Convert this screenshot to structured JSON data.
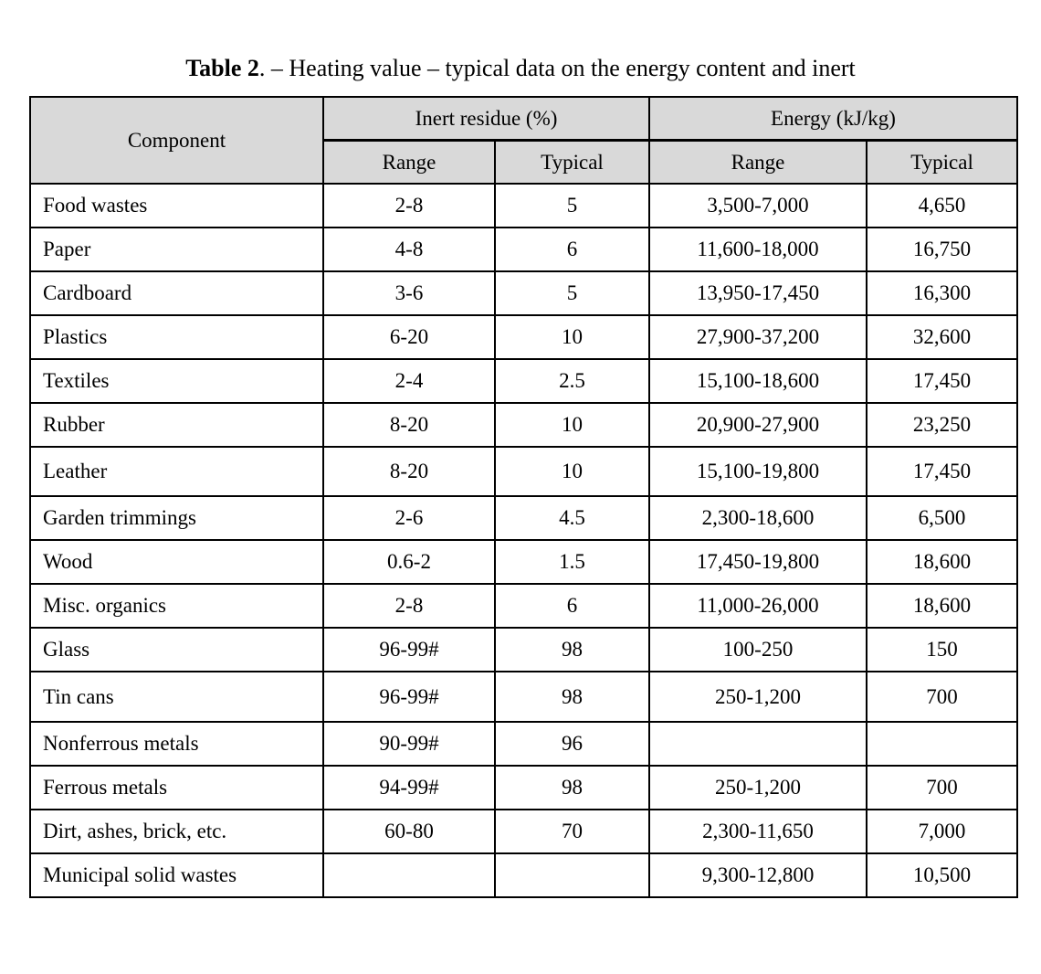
{
  "page": {
    "title_prefix": "Table 2",
    "title_rest": ". – Heating value – typical data on the energy content and inert"
  },
  "colors": {
    "header_bg": "#d9d9d9",
    "border": "#000000",
    "background": "#ffffff",
    "text": "#000000"
  },
  "table": {
    "header": {
      "component": "Component",
      "inert_group": "Inert residue (%)",
      "energy_group": "Energy (kJ/kg)",
      "sub_headers": {
        "inert_range": "Range",
        "inert_typical": "Typical",
        "energy_range": "Range",
        "energy_typical": "Typical"
      }
    },
    "rows": [
      {
        "component": "Food wastes",
        "inert_range": "2-8",
        "inert_typical": "5",
        "energy_range": "3,500-7,000",
        "energy_typical": "4,650"
      },
      {
        "component": "Paper",
        "inert_range": "4-8",
        "inert_typical": "6",
        "energy_range": "11,600-18,000",
        "energy_typical": "16,750"
      },
      {
        "component": "Cardboard",
        "inert_range": "3-6",
        "inert_typical": "5",
        "energy_range": "13,950-17,450",
        "energy_typical": "16,300"
      },
      {
        "component": "Plastics",
        "inert_range": "6-20",
        "inert_typical": "10",
        "energy_range": "27,900-37,200",
        "energy_typical": "32,600"
      },
      {
        "component": "Textiles",
        "inert_range": "2-4",
        "inert_typical": "2.5",
        "energy_range": "15,100-18,600",
        "energy_typical": "17,450"
      },
      {
        "component": "Rubber",
        "inert_range": "8-20",
        "inert_typical": "10",
        "energy_range": "20,900-27,900",
        "energy_typical": "23,250"
      },
      {
        "component": "Leather",
        "inert_range": "8-20",
        "inert_typical": "10",
        "energy_range": "15,100-19,800",
        "energy_typical": "17,450"
      },
      {
        "component": "Garden trimmings",
        "inert_range": "2-6",
        "inert_typical": "4.5",
        "energy_range": "2,300-18,600",
        "energy_typical": "6,500"
      },
      {
        "component": "Wood",
        "inert_range": "0.6-2",
        "inert_typical": "1.5",
        "energy_range": "17,450-19,800",
        "energy_typical": "18,600"
      },
      {
        "component": "Misc. organics",
        "inert_range": "2-8",
        "inert_typical": "6",
        "energy_range": "11,000-26,000",
        "energy_typical": "18,600"
      },
      {
        "component": "Glass",
        "inert_range": "96-99#",
        "inert_typical": "98",
        "energy_range": "100-250",
        "energy_typical": "150"
      },
      {
        "component": "Tin cans",
        "inert_range": "96-99#",
        "inert_typical": "98",
        "energy_range": "250-1,200",
        "energy_typical": "700"
      },
      {
        "component": "Nonferrous metals",
        "inert_range": "90-99#",
        "inert_typical": "96",
        "energy_range": "",
        "energy_typical": ""
      },
      {
        "component": "Ferrous metals",
        "inert_range": "94-99#",
        "inert_typical": "98",
        "energy_range": "250-1,200",
        "energy_typical": "700"
      },
      {
        "component": "Dirt, ashes, brick, etc.",
        "inert_range": "60-80",
        "inert_typical": "70",
        "energy_range": "2,300-11,650",
        "energy_typical": "7,000"
      },
      {
        "component": "Municipal solid wastes",
        "inert_range": "",
        "inert_typical": "",
        "energy_range": "9,300-12,800",
        "energy_typical": "10,500"
      }
    ]
  }
}
